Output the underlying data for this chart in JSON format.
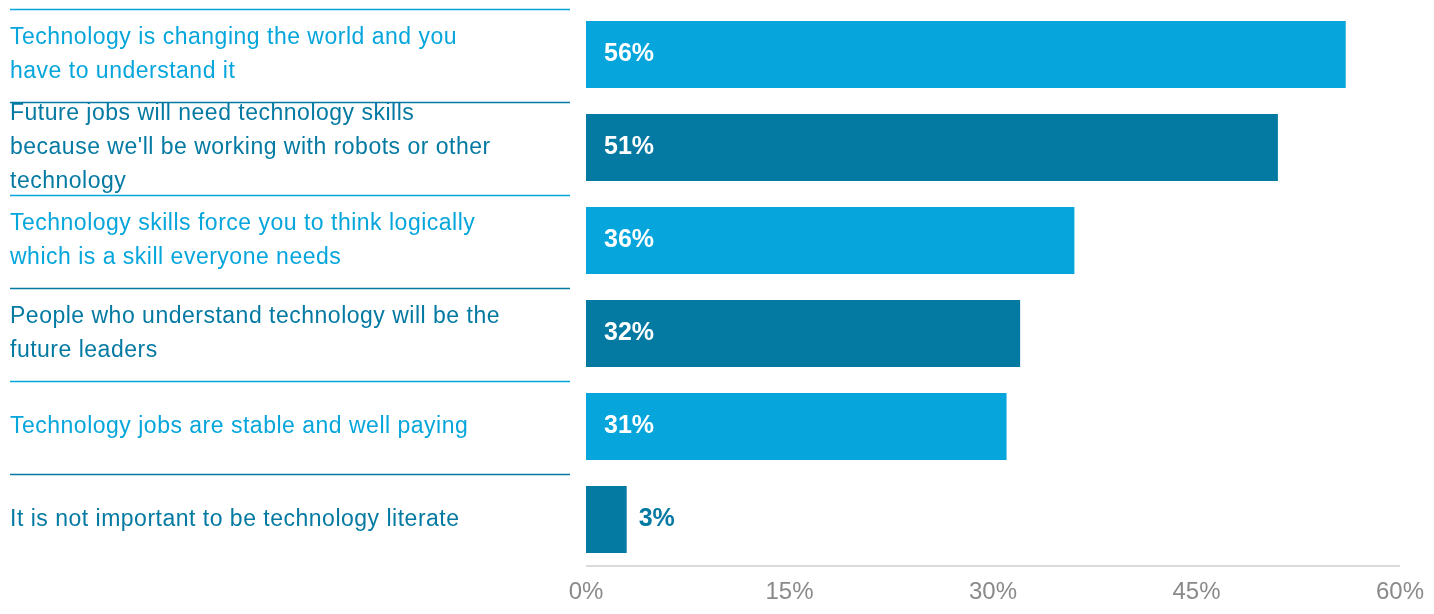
{
  "chart_data": {
    "type": "bar",
    "orientation": "horizontal",
    "categories": [
      "Technology is changing the world and you have to understand it",
      "Future jobs will need technology skills because we'll be working with robots or other technology",
      "Technology skills force you to think logically which is a skill everyone needs",
      "People who understand technology will be the future leaders",
      "Technology jobs are stable and well paying",
      "It is not important to be technology literate"
    ],
    "values": [
      56,
      51,
      36,
      32,
      31,
      3
    ],
    "colors": [
      "#06a6dc",
      "#047aa3",
      "#06a6dc",
      "#047aa3",
      "#06a6dc",
      "#047aa3"
    ],
    "value_labels": [
      "56%",
      "51%",
      "36%",
      "32%",
      "31%",
      "3%"
    ],
    "xlim": [
      0,
      60
    ],
    "xticks": [
      {
        "value": 0,
        "label": "0%"
      },
      {
        "value": 15,
        "label": "15%"
      },
      {
        "value": 30,
        "label": "30%"
      },
      {
        "value": 45,
        "label": "45%"
      },
      {
        "value": 60,
        "label": "60%"
      }
    ],
    "grid": false,
    "legend": false
  }
}
